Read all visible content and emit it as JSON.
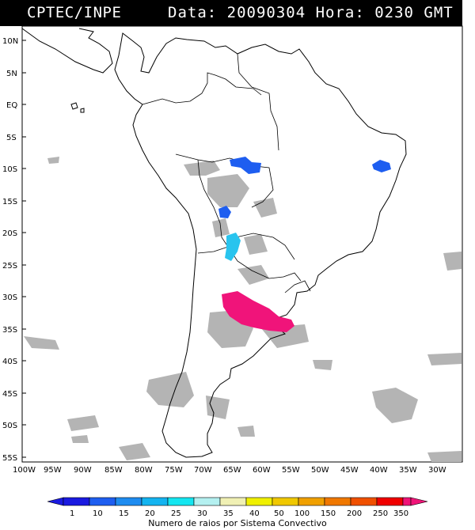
{
  "header": {
    "source": "CPTEC/INPE",
    "datetime": "Data: 20090304 Hora: 0230 GMT"
  },
  "map": {
    "lat_labels": [
      "10N",
      "5N",
      "EQ",
      "5S",
      "10S",
      "15S",
      "20S",
      "25S",
      "30S",
      "35S",
      "40S",
      "45S",
      "50S",
      "55S"
    ],
    "lon_labels": [
      "100W",
      "95W",
      "90W",
      "85W",
      "80W",
      "75W",
      "70W",
      "65W",
      "60W",
      "55W",
      "50W",
      "45W",
      "40W",
      "35W",
      "30W"
    ],
    "colors": {
      "cloud": "#b4b4b4",
      "coast": "#000000",
      "cluster_blue": "#1e5ef0",
      "cluster_cyan": "#29c4ee",
      "cluster_magenta": "#f0147a"
    }
  },
  "legend": {
    "labels": [
      "1",
      "10",
      "15",
      "20",
      "25",
      "30",
      "35",
      "40",
      "50",
      "100",
      "150",
      "200",
      "250",
      "350"
    ],
    "colors": [
      "#1a1ae0",
      "#1e5ef0",
      "#1e8cf0",
      "#14b4f0",
      "#14e6f0",
      "#b4f0f0",
      "#f0f0b4",
      "#f0f000",
      "#f0c800",
      "#f0a000",
      "#f07800",
      "#f05000",
      "#f00000",
      "#f01478"
    ],
    "title": "Numero de raios por Sistema Convectivo"
  }
}
